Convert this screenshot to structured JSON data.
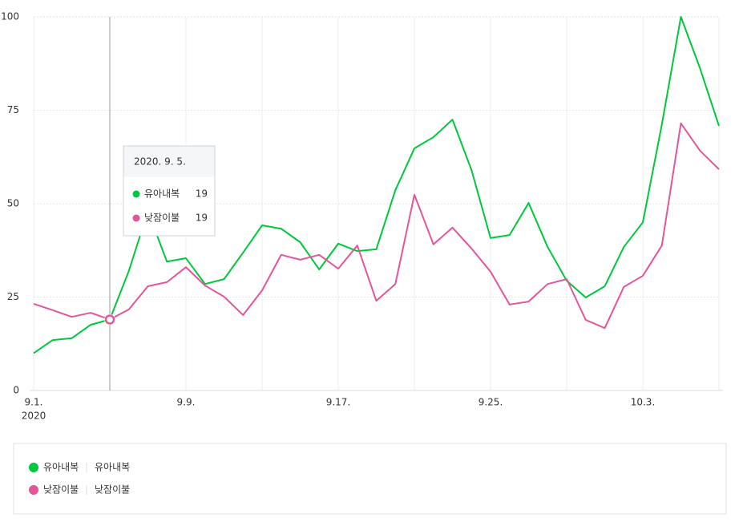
{
  "chart_data": {
    "type": "line",
    "x": [
      "2020-09-01",
      "2020-09-02",
      "2020-09-03",
      "2020-09-04",
      "2020-09-05",
      "2020-09-06",
      "2020-09-07",
      "2020-09-08",
      "2020-09-09",
      "2020-09-10",
      "2020-09-11",
      "2020-09-12",
      "2020-09-13",
      "2020-09-14",
      "2020-09-15",
      "2020-09-16",
      "2020-09-17",
      "2020-09-18",
      "2020-09-19",
      "2020-09-20",
      "2020-09-21",
      "2020-09-22",
      "2020-09-23",
      "2020-09-24",
      "2020-09-25",
      "2020-09-26",
      "2020-09-27",
      "2020-09-28",
      "2020-09-29",
      "2020-09-30",
      "2020-10-01",
      "2020-10-02",
      "2020-10-03",
      "2020-10-04",
      "2020-10-05",
      "2020-10-06",
      "2020-10-07"
    ],
    "xlim": [
      "2020-09-01",
      "2020-10-07"
    ],
    "xticks": [
      {
        "value": "2020-09-01",
        "label": "9.1."
      },
      {
        "value": "2020-09-09",
        "label": "9.9."
      },
      {
        "value": "2020-09-17",
        "label": "9.17."
      },
      {
        "value": "2020-09-25",
        "label": "9.25."
      },
      {
        "value": "2020-10-03",
        "label": "10.3."
      }
    ],
    "x_year_label": "2020",
    "ylim": [
      0,
      100
    ],
    "yticks": [
      0,
      25,
      50,
      75,
      100
    ],
    "grid": true,
    "series": [
      {
        "name": "유아내복",
        "keyword": "유아내복",
        "color": "#00c73c",
        "values": [
          10,
          13.5,
          14,
          17.6,
          19,
          32,
          48,
          34.5,
          35.4,
          28.5,
          29.8,
          36.9,
          44.2,
          43.3,
          39.7,
          32.4,
          39.3,
          37.3,
          37.8,
          53.6,
          64.8,
          67.8,
          72.5,
          59,
          40.8,
          41.6,
          50.2,
          38.4,
          29.4,
          24.9,
          27.9,
          38.4,
          45,
          71.2,
          100,
          86.3,
          70.8
        ]
      },
      {
        "name": "낮잠이불",
        "keyword": "낮잠이불",
        "color": "#e4559a",
        "values": [
          23.2,
          21.5,
          19.7,
          20.8,
          19,
          21.7,
          27.9,
          29,
          33,
          28.1,
          25.1,
          20.2,
          26.8,
          36.3,
          35,
          36.3,
          32.6,
          38.8,
          24,
          28.5,
          52.4,
          39.1,
          43.6,
          38,
          31.8,
          23,
          23.8,
          28.5,
          29.8,
          18.9,
          16.7,
          27.7,
          30.7,
          38.8,
          71.5,
          64.2,
          59.2
        ]
      }
    ],
    "tooltip": {
      "title": "2020. 9. 5.",
      "x": "2020-09-05"
    }
  }
}
